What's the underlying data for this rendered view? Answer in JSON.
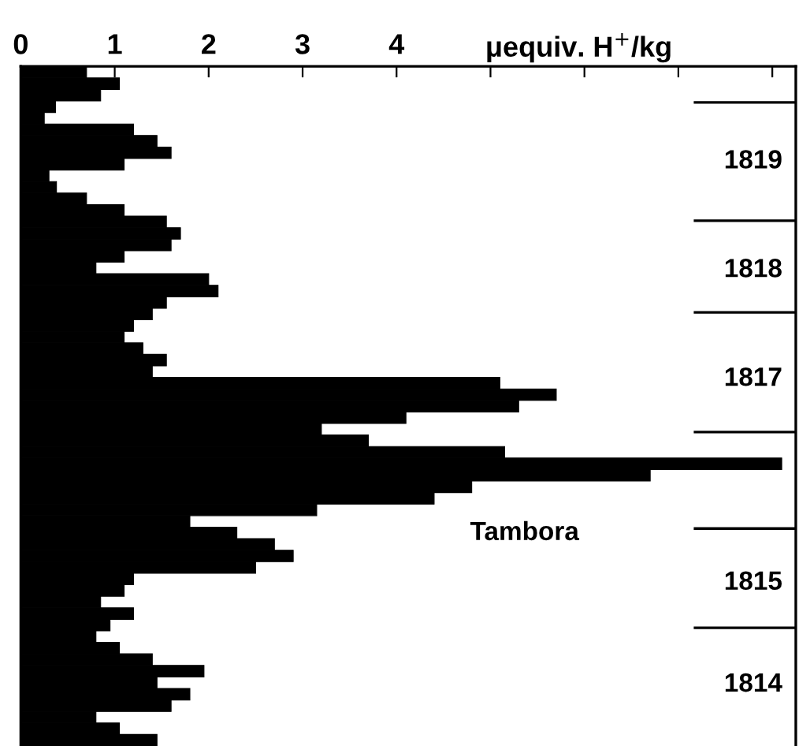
{
  "chart_data": {
    "type": "bar",
    "orientation": "horizontal",
    "xlabel": "μequiv. H$^{+}$/kg",
    "categories": [
      null,
      null,
      null,
      null,
      null,
      null,
      null,
      null,
      null,
      null,
      null,
      null,
      null,
      null,
      null,
      null,
      null,
      null,
      null,
      null,
      null,
      null,
      null,
      null,
      null,
      null,
      null,
      null,
      null,
      null,
      null,
      null,
      null,
      null,
      null,
      null,
      null,
      null,
      null,
      null,
      null,
      null,
      null,
      null,
      null,
      null,
      null,
      null,
      null,
      null,
      null,
      null,
      null,
      null,
      null,
      null,
      null,
      null,
      null
    ],
    "values": [
      0.7,
      1.05,
      0.85,
      0.37,
      0.25,
      1.2,
      1.45,
      1.6,
      1.1,
      0.3,
      0.38,
      0.7,
      1.1,
      1.55,
      1.7,
      1.6,
      1.1,
      0.8,
      2.0,
      2.1,
      1.55,
      1.4,
      1.2,
      1.1,
      1.3,
      1.55,
      1.4,
      5.1,
      5.7,
      5.3,
      4.1,
      3.2,
      3.7,
      5.15,
      8.1,
      6.7,
      4.8,
      4.4,
      3.15,
      1.8,
      2.3,
      2.7,
      2.9,
      2.5,
      1.2,
      1.1,
      0.85,
      1.2,
      0.95,
      0.8,
      1.05,
      1.4,
      1.95,
      1.45,
      1.8,
      1.6,
      0.8,
      1.05,
      1.45
    ],
    "color": "#000000",
    "xlim": [
      0,
      8.25
    ],
    "xticks": [
      0,
      1,
      2,
      3,
      4,
      {
        "value": 5,
        "label": null
      },
      {
        "value": 6,
        "label": null
      },
      {
        "value": 7,
        "label": null
      },
      {
        "value": 8,
        "label": null
      }
    ],
    "tick_labels": "x",
    "grid": false,
    "annotations": [
      "1819",
      "1818",
      "1817",
      "Tambora",
      "1815",
      "1814"
    ]
  }
}
